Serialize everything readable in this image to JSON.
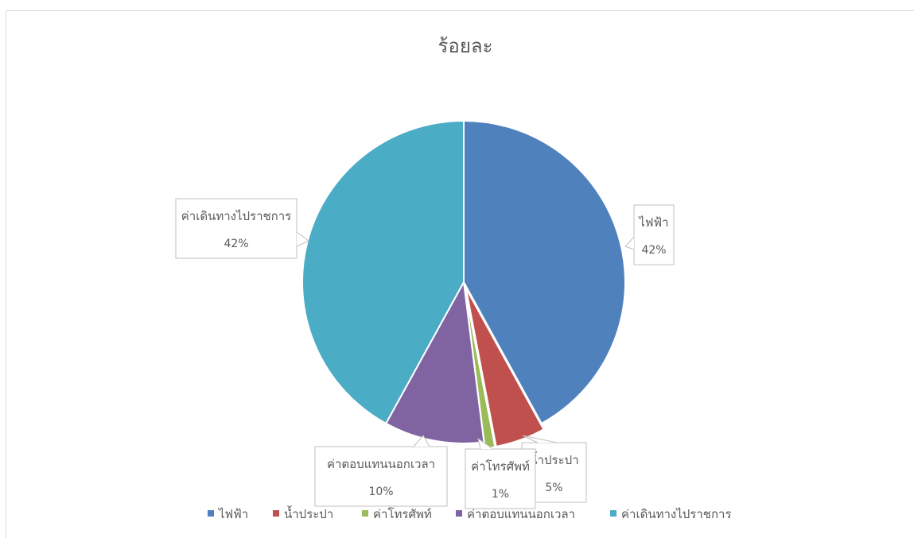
{
  "chart_data": {
    "type": "pie",
    "title": "ร้อยละ",
    "categories": [
      "ไฟฟ้า",
      "น้ำประปา",
      "ค่าโทรศัพท์",
      "ค่าตอบแทนนอกเวลา",
      "ค่าเดินทางไปราชการ"
    ],
    "values": [
      42,
      5,
      1,
      10,
      42
    ],
    "value_labels": [
      "42%",
      "5%",
      "1%",
      "10%",
      "42%"
    ],
    "colors": [
      "#4f81bd",
      "#c0504d",
      "#9bbb59",
      "#8064a2",
      "#4bacc6"
    ],
    "legend_position": "bottom",
    "exploded_slices": [
      "น้ำประปา",
      "ค่าโทรศัพท์"
    ]
  }
}
